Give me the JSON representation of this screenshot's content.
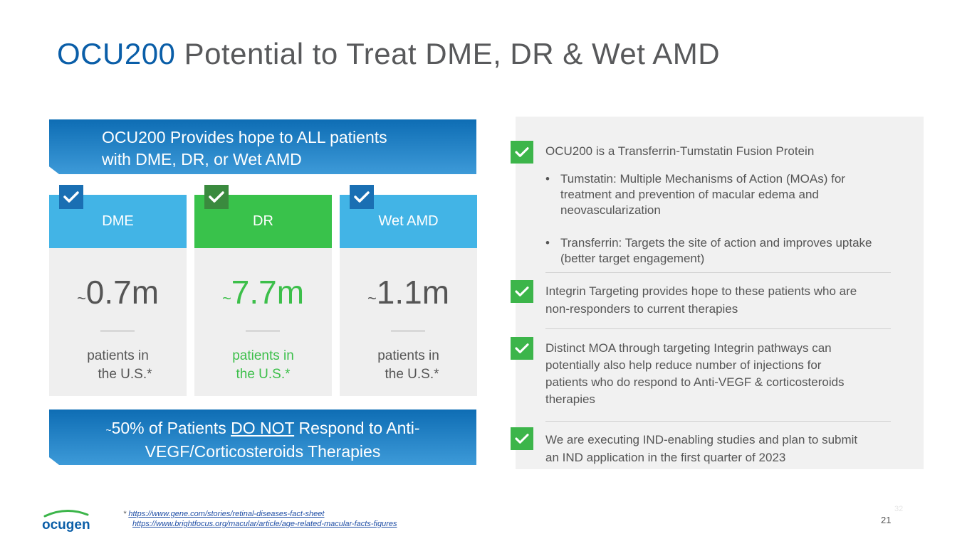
{
  "title": {
    "accent": "OCU200",
    "rest": " Potential to Treat DME, DR & Wet AMD"
  },
  "banner_top": {
    "line1": "OCU200 Provides hope to ALL patients",
    "line2": "with DME, DR, or Wet AMD"
  },
  "columns": [
    {
      "label": "DME",
      "tilde": "~",
      "value": "0.7m",
      "sub1": "patients in",
      "sub2": "the U.S.*",
      "color": "#42b4e6"
    },
    {
      "label": "DR",
      "tilde": "~",
      "value": "7.7m",
      "sub1": "patients in",
      "sub2": "the U.S.*",
      "color": "#39c24b"
    },
    {
      "label": "Wet AMD",
      "tilde": "~",
      "value": "1.1m",
      "sub1": "patients in",
      "sub2": "the U.S.*",
      "color": "#42b4e6"
    }
  ],
  "banner_bottom": {
    "tilde": "~",
    "pre": "50% of Patients ",
    "underlined": "DO NOT",
    "post": " Respond to Anti-",
    "line2": "VEGF/Corticosteroids Therapies"
  },
  "right_panel": {
    "item1": "OCU200 is a Transferrin-Tumstatin Fusion Protein",
    "bullets": [
      {
        "line1": "Tumstatin: Multiple Mechanisms of Action (MOAs) for",
        "line2": "treatment and prevention of macular edema and",
        "line3": "neovascularization"
      },
      {
        "line1": "Transferrin: Targets the site of action and improves uptake",
        "line2": "(better target engagement)"
      }
    ],
    "item2": {
      "line1": "Integrin Targeting provides hope to these patients who are",
      "line2": "non-responders to current therapies"
    },
    "item3": {
      "line1": "Distinct MOA through targeting Integrin pathways can",
      "line2": "potentially also help reduce number of injections for",
      "line3": "patients who do respond to Anti-VEGF & corticosteroids",
      "line4": "therapies"
    },
    "item4": {
      "line1": "We are executing IND-enabling studies and plan to submit",
      "line2": "an IND application in the first quarter of 2023"
    }
  },
  "footer": {
    "logo_text": "ocugen",
    "footnote_star": "*",
    "link1": "https://www.gene.com/stories/retinal-diseases-fact-sheet",
    "link2": "https://www.brightfocus.org/macular/article/age-related-macular-facts-figures",
    "page_number": "21",
    "ghost_number": "32"
  },
  "colors": {
    "brand_blue": "#0a5ea8",
    "check_green": "#3cb54a",
    "check_blue": "#1a6fb3",
    "dark_green": "#3a8a3e"
  },
  "icons": {
    "check": "check-icon"
  }
}
